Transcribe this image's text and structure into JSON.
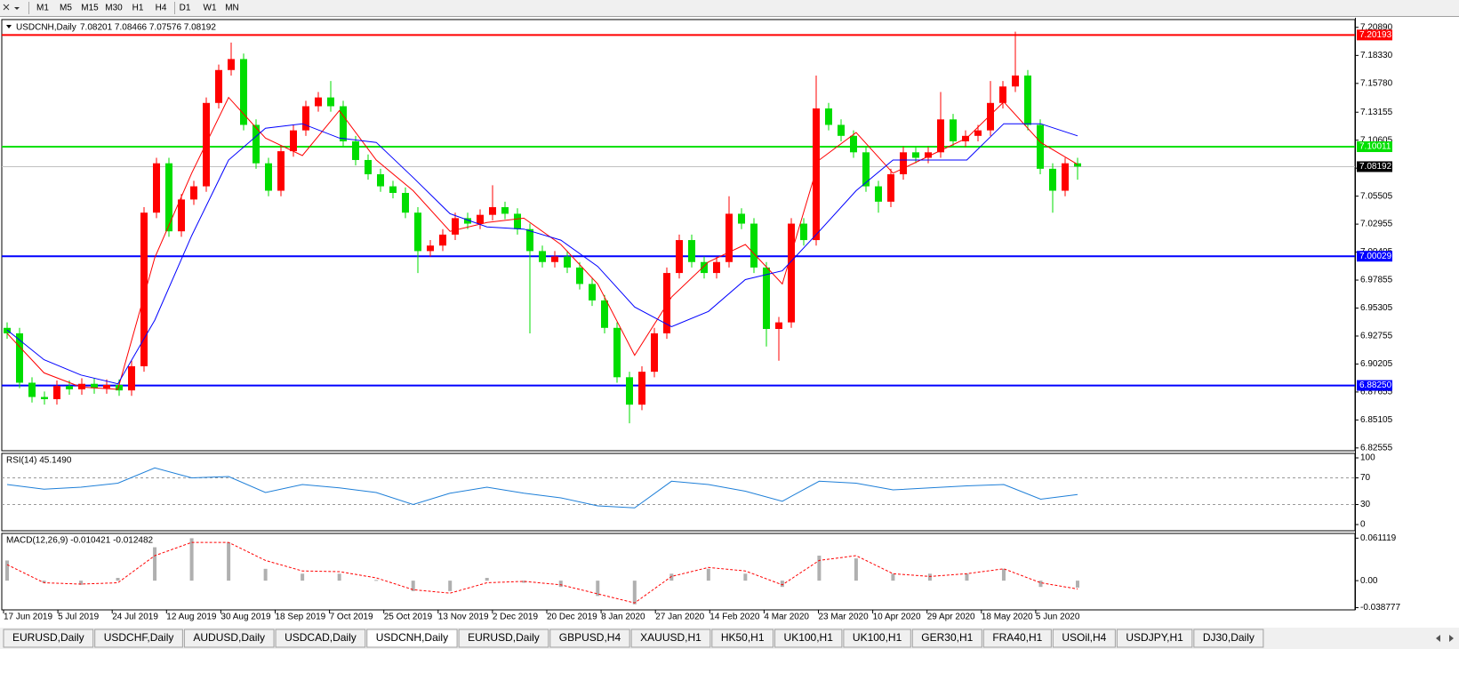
{
  "toolbar": {
    "timeframes": [
      "M1",
      "M5",
      "M15",
      "M30",
      "H1",
      "H4",
      "D1",
      "W1",
      "MN"
    ]
  },
  "tabs": [
    "EURUSD,Daily",
    "USDCHF,Daily",
    "AUDUSD,Daily",
    "USDCAD,Daily",
    "USDCNH,Daily",
    "EURUSD,Daily",
    "GBPUSD,H4",
    "XAUUSD,H1",
    "HK50,H1",
    "UK100,H1",
    "UK100,H1",
    "GER30,H1",
    "FRA40,H1",
    "USOil,H4",
    "USDJPY,H1",
    "DJ30,Daily"
  ],
  "active_tab": 4,
  "chart_data": [
    {
      "type": "candlestick",
      "title": "USDCNH,Daily",
      "subtitle": "7.08201 7.08466 7.07576 7.08192",
      "x_labels": [
        "17 Jun 2019",
        "5 Jul 2019",
        "24 Jul 2019",
        "12 Aug 2019",
        "30 Aug 2019",
        "18 Sep 2019",
        "7 Oct 2019",
        "25 Oct 2019",
        "13 Nov 2019",
        "2 Dec 2019",
        "20 Dec 2019",
        "8 Jan 2020",
        "27 Jan 2020",
        "14 Feb 2020",
        "4 Mar 2020",
        "23 Mar 2020",
        "10 Apr 2020",
        "29 Apr 2020",
        "18 May 2020",
        "5 Jun 2020"
      ],
      "up_color": "#ff0000",
      "down_color": "#00dd00",
      "open": [
        6.935,
        6.93,
        6.885,
        6.872,
        6.87,
        6.882,
        6.879,
        6.884,
        6.88,
        6.883,
        6.878,
        6.9,
        7.04,
        7.085,
        7.023,
        7.052,
        7.064,
        7.14,
        7.17,
        7.18,
        7.12,
        7.085,
        7.06,
        7.096,
        7.115,
        7.137,
        7.145,
        7.137,
        7.105,
        7.088,
        7.075,
        7.064,
        7.058,
        7.04,
        7.005,
        7.01,
        7.02,
        7.035,
        7.03,
        7.038,
        7.045,
        7.039,
        7.025,
        7.005,
        6.995,
        7.0,
        6.99,
        6.975,
        6.96,
        6.935,
        6.89,
        6.865,
        6.895,
        6.93,
        6.985,
        7.015,
        6.995,
        6.985,
        6.995,
        7.039,
        7.03,
        6.99,
        6.934,
        6.94,
        7.03,
        7.015,
        7.135,
        7.12,
        7.11,
        7.095,
        7.064,
        7.05,
        7.075,
        7.095,
        7.09,
        7.095,
        7.125,
        7.105,
        7.11,
        7.115,
        7.14,
        7.155,
        7.165,
        7.12,
        7.08,
        7.06,
        7.085
      ],
      "high": [
        6.94,
        6.935,
        6.89,
        6.877,
        6.887,
        6.887,
        6.889,
        6.889,
        6.888,
        6.888,
        6.905,
        7.045,
        7.09,
        7.09,
        7.057,
        7.069,
        7.145,
        7.175,
        7.195,
        7.185,
        7.125,
        7.09,
        7.101,
        7.12,
        7.142,
        7.15,
        7.16,
        7.142,
        7.11,
        7.093,
        7.08,
        7.069,
        7.063,
        7.045,
        7.015,
        7.025,
        7.04,
        7.04,
        7.043,
        7.065,
        7.05,
        7.044,
        7.03,
        7.01,
        7.005,
        7.005,
        6.995,
        6.98,
        6.965,
        6.94,
        6.895,
        6.9,
        6.935,
        6.99,
        7.02,
        7.02,
        7.0,
        7.0,
        7.055,
        7.044,
        7.035,
        6.995,
        6.945,
        7.035,
        7.035,
        7.165,
        7.14,
        7.125,
        7.115,
        7.1,
        7.069,
        7.08,
        7.1,
        7.1,
        7.1,
        7.15,
        7.13,
        7.115,
        7.12,
        7.16,
        7.16,
        7.205,
        7.17,
        7.125,
        7.085,
        7.09,
        7.09
      ],
      "low": [
        6.925,
        6.88,
        6.867,
        6.865,
        6.865,
        6.874,
        6.874,
        6.875,
        6.875,
        6.873,
        6.873,
        6.895,
        7.035,
        7.018,
        7.018,
        7.047,
        7.059,
        7.135,
        7.165,
        7.115,
        7.08,
        7.055,
        7.055,
        7.091,
        7.11,
        7.132,
        7.132,
        7.1,
        7.083,
        7.07,
        7.059,
        7.053,
        7.035,
        6.985,
        7.0,
        7.005,
        7.015,
        7.025,
        7.025,
        7.033,
        7.034,
        7.02,
        6.93,
        6.99,
        6.99,
        6.985,
        6.97,
        6.955,
        6.93,
        6.885,
        6.848,
        6.86,
        6.89,
        6.925,
        6.98,
        6.99,
        6.98,
        6.98,
        6.99,
        7.025,
        6.985,
        6.918,
        6.905,
        6.935,
        7.01,
        7.01,
        7.115,
        7.105,
        7.09,
        7.059,
        7.04,
        7.045,
        7.07,
        7.085,
        7.085,
        7.09,
        7.1,
        7.1,
        7.105,
        7.11,
        7.135,
        7.15,
        7.115,
        7.075,
        7.04,
        7.055,
        7.07
      ],
      "close": [
        6.93,
        6.885,
        6.872,
        6.87,
        6.882,
        6.879,
        6.884,
        6.88,
        6.883,
        6.878,
        6.9,
        7.04,
        7.085,
        7.023,
        7.052,
        7.064,
        7.14,
        7.17,
        7.18,
        7.12,
        7.085,
        7.06,
        7.096,
        7.115,
        7.137,
        7.145,
        7.137,
        7.105,
        7.088,
        7.075,
        7.064,
        7.058,
        7.04,
        7.005,
        7.01,
        7.02,
        7.035,
        7.03,
        7.038,
        7.045,
        7.039,
        7.025,
        7.005,
        6.995,
        7.0,
        6.99,
        6.975,
        6.96,
        6.935,
        6.89,
        6.865,
        6.895,
        6.93,
        6.985,
        7.015,
        6.995,
        6.985,
        6.995,
        7.039,
        7.03,
        6.99,
        6.934,
        6.94,
        7.03,
        7.015,
        7.135,
        7.12,
        7.11,
        7.095,
        7.064,
        7.05,
        7.075,
        7.095,
        7.09,
        7.095,
        7.125,
        7.105,
        7.11,
        7.115,
        7.14,
        7.155,
        7.165,
        7.12,
        7.08,
        7.06,
        7.085,
        7.082
      ],
      "lines": [
        {
          "color": "#ff0000",
          "values": [
            6.93,
            6.894,
            6.881,
            6.879,
            6.999,
            7.076,
            7.145,
            7.108,
            7.092,
            7.133,
            7.088,
            7.06,
            7.023,
            7.031,
            7.035,
            7.011,
            6.975,
            6.91,
            6.963,
            6.995,
            7.011,
            6.975,
            7.088,
            7.113,
            7.076,
            7.092,
            7.108,
            7.141,
            7.104,
            7.084
          ]
        },
        {
          "color": "#0000ff",
          "values": [
            6.933,
            6.906,
            6.892,
            6.884,
            6.942,
            7.019,
            7.088,
            7.117,
            7.121,
            7.108,
            7.104,
            7.072,
            7.039,
            7.027,
            7.025,
            7.015,
            6.991,
            6.954,
            6.936,
            6.95,
            6.979,
            6.987,
            7.023,
            7.06,
            7.088,
            7.088,
            7.088,
            7.121,
            7.121,
            7.11
          ]
        }
      ],
      "levels": [
        {
          "value": 7.20193,
          "label": "7.20193",
          "color": "#ff0000"
        },
        {
          "value": 7.10011,
          "label": "7.10011",
          "color": "#00e000"
        },
        {
          "value": 7.08192,
          "label": "7.08192",
          "color": "#000000",
          "line_color": "#c0c0c0"
        },
        {
          "value": 7.00029,
          "label": "7.00029",
          "color": "#0000ff"
        },
        {
          "value": 6.8825,
          "label": "6.88250",
          "color": "#0000ff"
        }
      ],
      "ylim": [
        6.823,
        7.216
      ],
      "yticks": [
        {
          "value": 7.2089,
          "label": "7.20890"
        },
        {
          "value": 7.1833,
          "label": "7.18330"
        },
        {
          "value": 7.1578,
          "label": "7.15780"
        },
        7.13155,
        7.10605,
        7.08055,
        7.05505,
        7.02955,
        7.00405,
        6.97855,
        6.95305,
        6.92755,
        6.90205,
        6.87655,
        6.85105,
        6.82555
      ]
    },
    {
      "type": "line",
      "title": "RSI(14) 45.1490",
      "color": "#1e7fd8",
      "values": [
        60,
        53,
        56,
        62,
        85,
        70,
        72,
        48,
        60,
        55,
        48,
        30,
        47,
        56,
        47,
        40,
        28,
        25,
        65,
        60,
        50,
        35,
        65,
        62,
        52,
        55,
        58,
        60,
        38,
        45
      ],
      "dashed_levels": [
        70,
        30
      ],
      "ylim": [
        -9.3,
        106.7
      ],
      "yticks": [
        100,
        70,
        30,
        0
      ]
    },
    {
      "type": "macd",
      "title": "MACD(12,26,9) -0.010421 -0.012482",
      "histogram_color": "#b0b0b0",
      "signal_color": "#ff0000",
      "histogram": [
        0.029,
        -0.003,
        -0.006,
        0.004,
        0.048,
        0.061,
        0.055,
        0.017,
        0.01,
        0.01,
        0.001,
        -0.015,
        -0.015,
        0.004,
        -0.003,
        -0.009,
        -0.022,
        -0.034,
        0.01,
        0.017,
        0.01,
        -0.009,
        0.036,
        0.032,
        0.01,
        0.01,
        0.01,
        0.017,
        -0.009,
        -0.01
      ],
      "signal": [
        0.023,
        -0.003,
        -0.005,
        -0.003,
        0.036,
        0.055,
        0.055,
        0.029,
        0.014,
        0.013,
        0.004,
        -0.013,
        -0.018,
        -0.003,
        -0.001,
        -0.006,
        -0.019,
        -0.032,
        0.006,
        0.019,
        0.014,
        -0.006,
        0.029,
        0.036,
        0.01,
        0.006,
        0.01,
        0.017,
        -0.003,
        -0.012
      ],
      "ylim": [
        -0.042,
        0.0679
      ],
      "yticks": [
        0.061119,
        {
          "value": 0,
          "label": "0.00"
        },
        -0.038777
      ]
    }
  ]
}
